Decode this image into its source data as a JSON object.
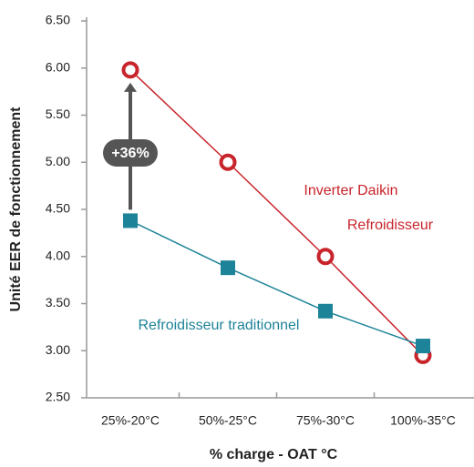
{
  "chart_data": {
    "type": "line",
    "x_label": "% charge - OAT °C",
    "y_label": "Unité EER de fonctionnement",
    "categories": [
      "25%-20°C",
      "50%-25°C",
      "75%-30°C",
      "100%-35°C"
    ],
    "series": [
      {
        "name": "Inverter Daikin",
        "color": "#c8242b",
        "values": [
          5.98,
          5.0,
          4.0,
          2.95
        ]
      },
      {
        "name": "Refroidisseur traditionnel",
        "color": "#1d8398",
        "values": [
          4.38,
          3.88,
          3.42,
          3.05
        ]
      }
    ],
    "annotations": [
      "Refroidisseur",
      "+36%"
    ],
    "ylim": [
      2.5,
      6.5
    ],
    "yticks": [
      {
        "value": 2.5,
        "label": "2.50"
      },
      {
        "value": 3.0,
        "label": "3.00"
      },
      {
        "value": 3.5,
        "label": "3.50"
      },
      {
        "value": 4.0,
        "label": "4.00"
      },
      {
        "value": 4.5,
        "label": "4.50"
      },
      {
        "value": 5.0,
        "label": "5.00"
      },
      {
        "value": 5.5,
        "label": "5.50"
      },
      {
        "value": 6.0,
        "label": "6.00"
      },
      {
        "value": 6.5,
        "label": "6.50"
      }
    ],
    "grid": false
  }
}
